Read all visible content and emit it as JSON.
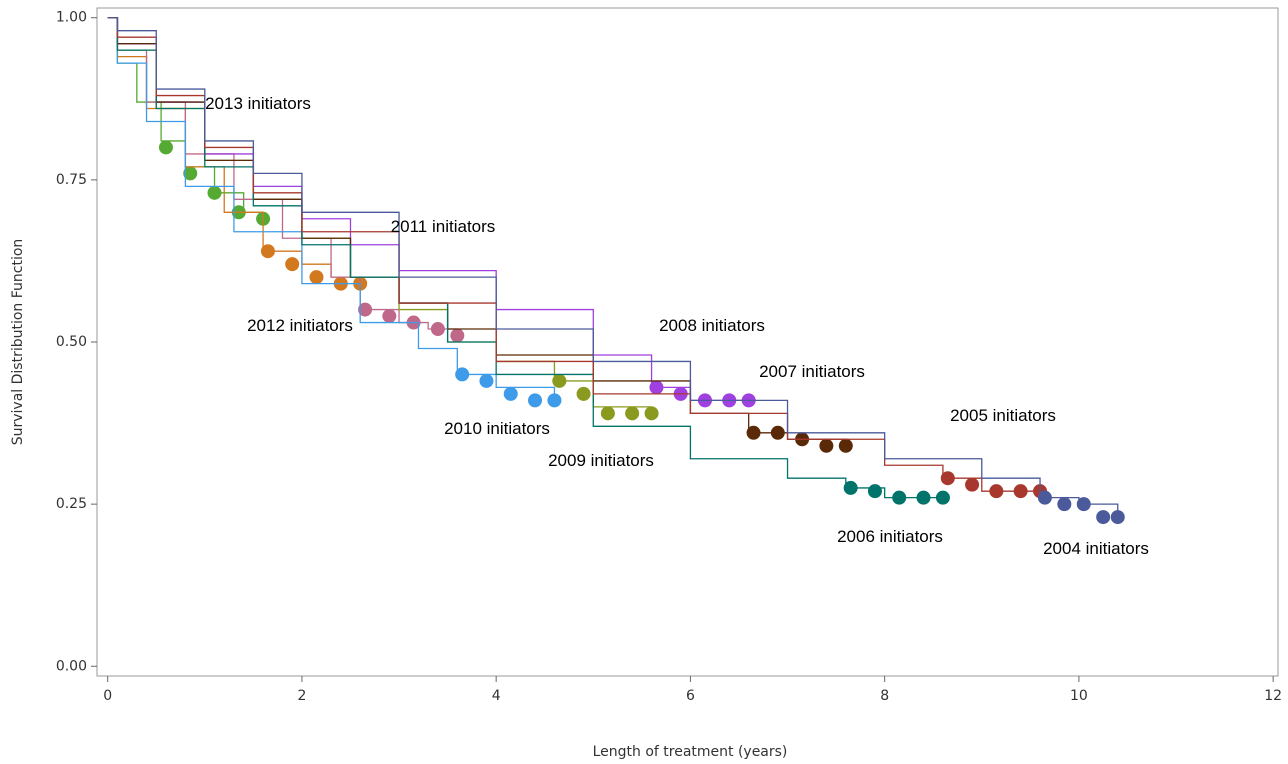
{
  "chart_data": {
    "type": "line",
    "x_label": "Length of treatment (years)",
    "y_label": "Survival Distribution Function",
    "xlim": [
      -0.11,
      12.05
    ],
    "ylim": [
      -0.015,
      1.015
    ],
    "xticks": [
      0,
      2,
      4,
      6,
      8,
      10,
      12
    ],
    "yticks": [
      {
        "value": 0,
        "label": "0.00"
      },
      {
        "value": 0.25,
        "label": "0.25"
      },
      {
        "value": 0.5,
        "label": "0.50"
      },
      {
        "value": 0.75,
        "label": "0.75"
      },
      {
        "value": 1,
        "label": "1.00"
      }
    ],
    "series": [
      {
        "name": "2013 initiators",
        "color": "#55aa33",
        "x": [
          0,
          0.1,
          0.3,
          0.55,
          0.8,
          1.1,
          1.4,
          1.6
        ],
        "values": [
          1,
          0.93,
          0.87,
          0.81,
          0.77,
          0.73,
          0.7,
          0.69
        ],
        "censored_x": [
          0.6,
          0.85,
          1.1,
          1.35,
          1.6
        ],
        "censored_values": [
          0.8,
          0.76,
          0.73,
          0.7,
          0.69
        ]
      },
      {
        "name": "2012 initiators",
        "color": "#d2781e",
        "x": [
          0,
          0.1,
          0.4,
          0.8,
          1.2,
          1.6,
          2.0,
          2.3,
          2.6
        ],
        "values": [
          1,
          0.94,
          0.86,
          0.77,
          0.7,
          0.64,
          0.62,
          0.6,
          0.59
        ],
        "censored_x": [
          1.65,
          1.9,
          2.15,
          2.4,
          2.6
        ],
        "censored_values": [
          0.64,
          0.62,
          0.6,
          0.59,
          0.59
        ]
      },
      {
        "name": "2011 initiators",
        "color": "#c0688a",
        "x": [
          0,
          0.1,
          0.4,
          0.8,
          1.3,
          1.8,
          2.3,
          2.6,
          3.0,
          3.3,
          3.6
        ],
        "values": [
          1,
          0.95,
          0.87,
          0.79,
          0.72,
          0.66,
          0.6,
          0.55,
          0.53,
          0.52,
          0.51
        ],
        "censored_x": [
          2.65,
          2.9,
          3.15,
          3.4,
          3.6
        ],
        "censored_values": [
          0.55,
          0.54,
          0.53,
          0.52,
          0.51
        ]
      },
      {
        "name": "2010 initiators",
        "color": "#3d9be9",
        "x": [
          0,
          0.1,
          0.4,
          0.8,
          1.3,
          2.0,
          2.6,
          3.2,
          3.6,
          4.0,
          4.6
        ],
        "values": [
          1,
          0.93,
          0.84,
          0.74,
          0.67,
          0.59,
          0.53,
          0.49,
          0.45,
          0.43,
          0.41
        ],
        "censored_x": [
          3.65,
          3.9,
          4.15,
          4.4,
          4.6
        ],
        "censored_values": [
          0.45,
          0.44,
          0.42,
          0.41,
          0.41
        ]
      },
      {
        "name": "2009 initiators",
        "color": "#8a9a1e",
        "x": [
          0,
          0.1,
          0.5,
          1,
          1.5,
          2,
          2.5,
          3,
          3.5,
          4,
          4.6,
          5,
          5.6
        ],
        "values": [
          1,
          0.95,
          0.86,
          0.78,
          0.72,
          0.66,
          0.6,
          0.55,
          0.5,
          0.47,
          0.44,
          0.4,
          0.39
        ],
        "censored_x": [
          4.65,
          4.9,
          5.15,
          5.4,
          5.6
        ],
        "censored_values": [
          0.44,
          0.42,
          0.39,
          0.39,
          0.39
        ]
      },
      {
        "name": "2008 initiators",
        "color": "#a040e0",
        "x": [
          0,
          0.1,
          0.5,
          1,
          1.5,
          2,
          2.5,
          3,
          4,
          5,
          5.6,
          6,
          6.6
        ],
        "values": [
          1,
          0.96,
          0.87,
          0.79,
          0.74,
          0.69,
          0.65,
          0.61,
          0.55,
          0.48,
          0.43,
          0.41,
          0.41
        ],
        "censored_x": [
          5.65,
          5.9,
          6.15,
          6.4,
          6.6
        ],
        "censored_values": [
          0.43,
          0.42,
          0.41,
          0.41,
          0.41
        ]
      },
      {
        "name": "2007 initiators",
        "color": "#5a2a08",
        "x": [
          0,
          0.1,
          0.5,
          1,
          1.5,
          2,
          2.5,
          3,
          3.5,
          4,
          5,
          6,
          6.6,
          7,
          7.6
        ],
        "values": [
          1,
          0.96,
          0.87,
          0.78,
          0.72,
          0.66,
          0.6,
          0.56,
          0.52,
          0.48,
          0.44,
          0.39,
          0.36,
          0.35,
          0.34
        ],
        "censored_x": [
          6.65,
          6.9,
          7.15,
          7.4,
          7.6
        ],
        "censored_values": [
          0.36,
          0.36,
          0.35,
          0.34,
          0.34
        ]
      },
      {
        "name": "2006 initiators",
        "color": "#00736a",
        "x": [
          0,
          0.1,
          0.5,
          1,
          1.5,
          2,
          2.5,
          3,
          3.5,
          4,
          5,
          6,
          7,
          7.6,
          8,
          8.6
        ],
        "values": [
          1,
          0.95,
          0.86,
          0.77,
          0.71,
          0.65,
          0.6,
          0.56,
          0.5,
          0.45,
          0.37,
          0.32,
          0.29,
          0.275,
          0.26,
          0.26
        ],
        "censored_x": [
          7.65,
          7.9,
          8.15,
          8.4,
          8.6
        ],
        "censored_values": [
          0.275,
          0.27,
          0.26,
          0.26,
          0.26
        ]
      },
      {
        "name": "2005 initiators",
        "color": "#a8382e",
        "x": [
          0,
          0.1,
          0.5,
          1,
          1.5,
          2,
          3,
          4,
          5,
          6,
          7,
          8,
          8.6,
          9,
          9.6
        ],
        "values": [
          1,
          0.97,
          0.88,
          0.8,
          0.73,
          0.67,
          0.56,
          0.47,
          0.42,
          0.39,
          0.35,
          0.31,
          0.29,
          0.27,
          0.27
        ],
        "censored_x": [
          8.65,
          8.9,
          9.15,
          9.4,
          9.6
        ],
        "censored_values": [
          0.29,
          0.28,
          0.27,
          0.27,
          0.27
        ]
      },
      {
        "name": "2004 initiators",
        "color": "#4a5a9a",
        "x": [
          0,
          0.1,
          0.5,
          1,
          1.5,
          2,
          3,
          4,
          5,
          6,
          7,
          8,
          9,
          9.6,
          10,
          10.4
        ],
        "values": [
          1,
          0.98,
          0.89,
          0.81,
          0.76,
          0.7,
          0.6,
          0.52,
          0.47,
          0.41,
          0.36,
          0.32,
          0.29,
          0.26,
          0.25,
          0.23
        ],
        "censored_x": [
          9.65,
          9.85,
          10.05,
          10.25,
          10.4
        ],
        "censored_values": [
          0.26,
          0.25,
          0.25,
          0.23,
          0.23
        ]
      }
    ]
  }
}
